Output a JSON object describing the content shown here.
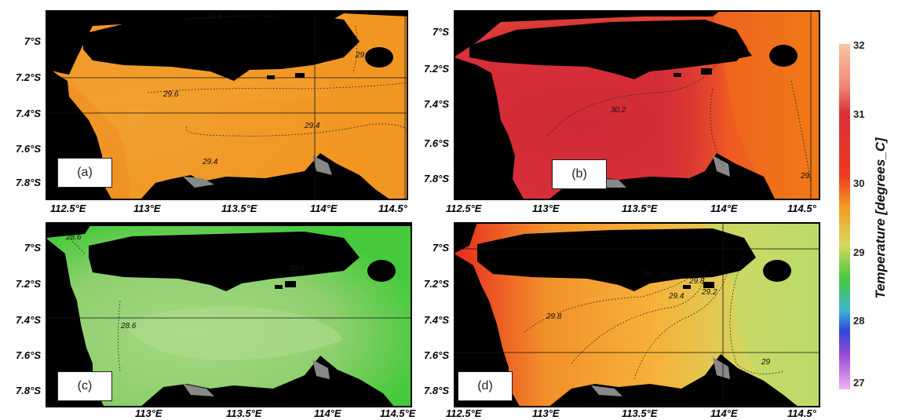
{
  "panels": [
    {
      "id": "a",
      "label": "(a)",
      "contours": [
        "29.4",
        "29.6",
        "29.6",
        "29.4",
        "29.4"
      ],
      "y_ticks": [
        "7°S",
        "7.2°S",
        "7.4°S",
        "7.6°S",
        "7.8°S"
      ],
      "x_ticks": [
        "112.5°E",
        "113°E",
        "113.5°E",
        "114°E",
        "114.5°"
      ]
    },
    {
      "id": "b",
      "label": "(b)",
      "contours": [
        "30.2",
        "29."
      ],
      "y_ticks": [
        "7°S",
        "7.2°S",
        "7.4°S",
        "7.6°S",
        "7.8°S"
      ],
      "x_ticks": [
        "112.5°E",
        "113°E",
        "113.5°E",
        "114°E",
        "114.5°"
      ]
    },
    {
      "id": "c",
      "label": "(c)",
      "contours": [
        "28.6",
        "28.6",
        "28.4"
      ],
      "y_ticks": [
        "7°S",
        "7.2°S",
        "7.4°S",
        "7.6°S",
        "7.8°S"
      ],
      "x_ticks": [
        "113°E",
        "113.5°E",
        "114°E",
        "114.5°E"
      ]
    },
    {
      "id": "d",
      "label": "(d)",
      "contours": [
        "29.8",
        "29.6",
        "29.",
        "29.4",
        "29.2",
        "29.8",
        "29"
      ],
      "y_ticks": [
        "7°S",
        "7.2°S",
        "7.4°S",
        "7.6°S",
        "7.8°S"
      ],
      "x_ticks": [
        "112.5°E",
        "113°E",
        "113.5°E",
        "114°E",
        "114.5°"
      ]
    }
  ],
  "colorbar": {
    "title": "Temperature [degrees_C]",
    "ticks": [
      "32",
      "31",
      "30",
      "29",
      "28",
      "27"
    ],
    "range": [
      27,
      32
    ]
  },
  "colors": {
    "land": "#000000",
    "grid": "#111111"
  }
}
